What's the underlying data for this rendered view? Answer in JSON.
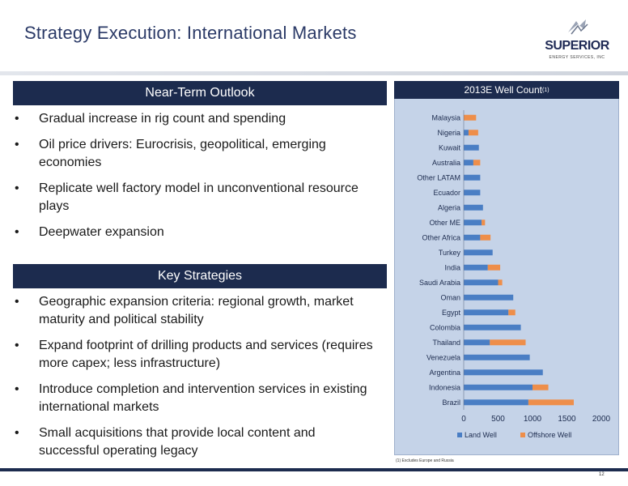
{
  "header": {
    "title": "Strategy Execution: International Markets",
    "logo_text": "SUPERIOR",
    "logo_subtext": "ENERGY SERVICES, INC"
  },
  "near_term": {
    "heading": "Near-Term Outlook",
    "bullets": [
      "Gradual increase in rig count and spending",
      "Oil price drivers: Eurocrisis, geopolitical, emerging economies",
      "Replicate well factory model in unconventional resource plays",
      "Deepwater expansion"
    ]
  },
  "key_strategies": {
    "heading": "Key Strategies",
    "bullets": [
      "Geographic expansion criteria: regional growth, market maturity and political stability",
      "Expand footprint of drilling products and services (requires more capex; less infrastructure)",
      "Introduce completion and intervention services in existing international markets",
      "Small acquisitions that provide local content and successful operating legacy"
    ]
  },
  "bullet_glyph": "•",
  "chart_title": "2013E Well Count",
  "chart_title_note": "(1)",
  "footnote": "(1)    Excludes Europe and Russia",
  "page_number": "12",
  "colors": {
    "navy": "#1c2b4e",
    "land": "#4a7ec4",
    "offshore": "#ee8e4a",
    "panel": "#c5d3e8"
  },
  "chart_data": {
    "type": "bar",
    "orientation": "horizontal",
    "stacked": true,
    "title": "2013E Well Count",
    "categories": [
      "Malaysia",
      "Nigeria",
      "Kuwait",
      "Australia",
      "Other LATAM",
      "Ecuador",
      "Algeria",
      "Other ME",
      "Other Africa",
      "Turkey",
      "India",
      "Saudi Arabia",
      "Oman",
      "Egypt",
      "Colombia",
      "Thailand",
      "Venezuela",
      "Argentina",
      "Indonesia",
      "Brazil"
    ],
    "series": [
      {
        "name": "Land Well",
        "color": "#4a7ec4",
        "values": [
          0,
          70,
          220,
          140,
          240,
          240,
          280,
          260,
          240,
          420,
          350,
          500,
          720,
          650,
          830,
          380,
          960,
          1150,
          1000,
          940
        ]
      },
      {
        "name": "Offshore Well",
        "color": "#ee8e4a",
        "values": [
          180,
          140,
          0,
          100,
          0,
          0,
          0,
          50,
          150,
          0,
          180,
          60,
          0,
          100,
          0,
          520,
          0,
          0,
          230,
          660
        ]
      }
    ],
    "xlim": [
      0,
      2000
    ],
    "xticks": [
      0,
      500,
      1000,
      1500,
      2000
    ],
    "legend_position": "bottom",
    "grid": false
  }
}
